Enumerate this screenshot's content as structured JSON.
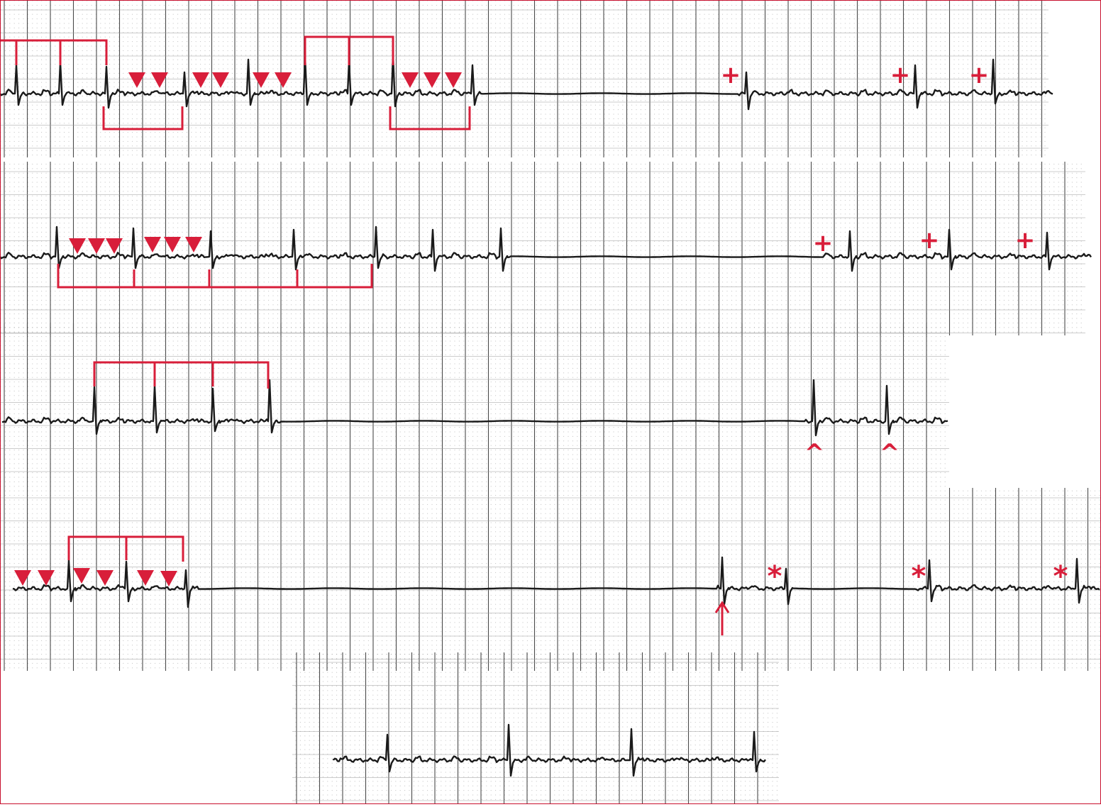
{
  "figure": {
    "description_visible_text": "",
    "annotation_color": "#d81e3a",
    "trace_color": "#1a1a1a",
    "grid_color": "#555555"
  },
  "strips": [
    {
      "id": 1,
      "annotation_symbols": [
        "▼",
        "+"
      ]
    },
    {
      "id": 2,
      "annotation_symbols": [
        "▼",
        "+"
      ]
    },
    {
      "id": 3,
      "annotation_symbols": [
        "^"
      ]
    },
    {
      "id": 4,
      "annotation_symbols": [
        "▼",
        "*",
        "↑"
      ]
    },
    {
      "id": 5,
      "annotation_symbols": []
    }
  ],
  "markers": {
    "plus": "+",
    "star": "*",
    "caret": "^",
    "arrow": "↑",
    "triangle": "▼"
  }
}
